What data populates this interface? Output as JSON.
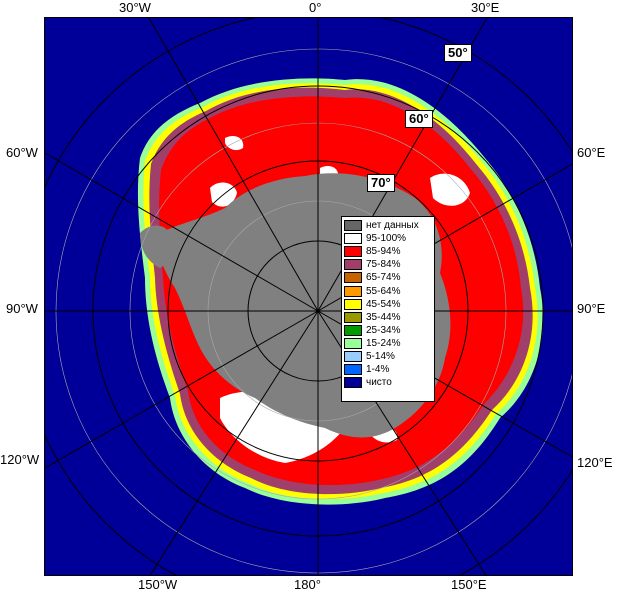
{
  "longitude_labels": {
    "top": [
      "30°W",
      "0°",
      "30°E"
    ],
    "left": [
      "60°W",
      "90°W",
      "120°W"
    ],
    "right": [
      "60°E",
      "90°E",
      "120°E"
    ],
    "bottom": [
      "150°W",
      "180°",
      "150°E"
    ]
  },
  "latitude_labels": [
    "50°",
    "60°",
    "70°"
  ],
  "legend": [
    {
      "label": "нет данных",
      "color": "#666666"
    },
    {
      "label": "95-100%",
      "color": "#ffffff"
    },
    {
      "label": "85-94%",
      "color": "#ff0000"
    },
    {
      "label": "75-84%",
      "color": "#a0406a"
    },
    {
      "label": "65-74%",
      "color": "#c86400"
    },
    {
      "label": "55-64%",
      "color": "#ff9900"
    },
    {
      "label": "45-54%",
      "color": "#ffff00"
    },
    {
      "label": "35-44%",
      "color": "#999900"
    },
    {
      "label": "25-34%",
      "color": "#009900"
    },
    {
      "label": "15-24%",
      "color": "#99ff99"
    },
    {
      "label": "5-14%",
      "color": "#99ccff"
    },
    {
      "label": "1-4%",
      "color": "#0066ff"
    },
    {
      "label": "чисто",
      "color": "#000099"
    }
  ],
  "colors": {
    "ocean": "#000099",
    "land": "#808080",
    "ice_shelf": "#5a5a5a",
    "grid": "#aaaaaa",
    "graticule": "#000000"
  }
}
